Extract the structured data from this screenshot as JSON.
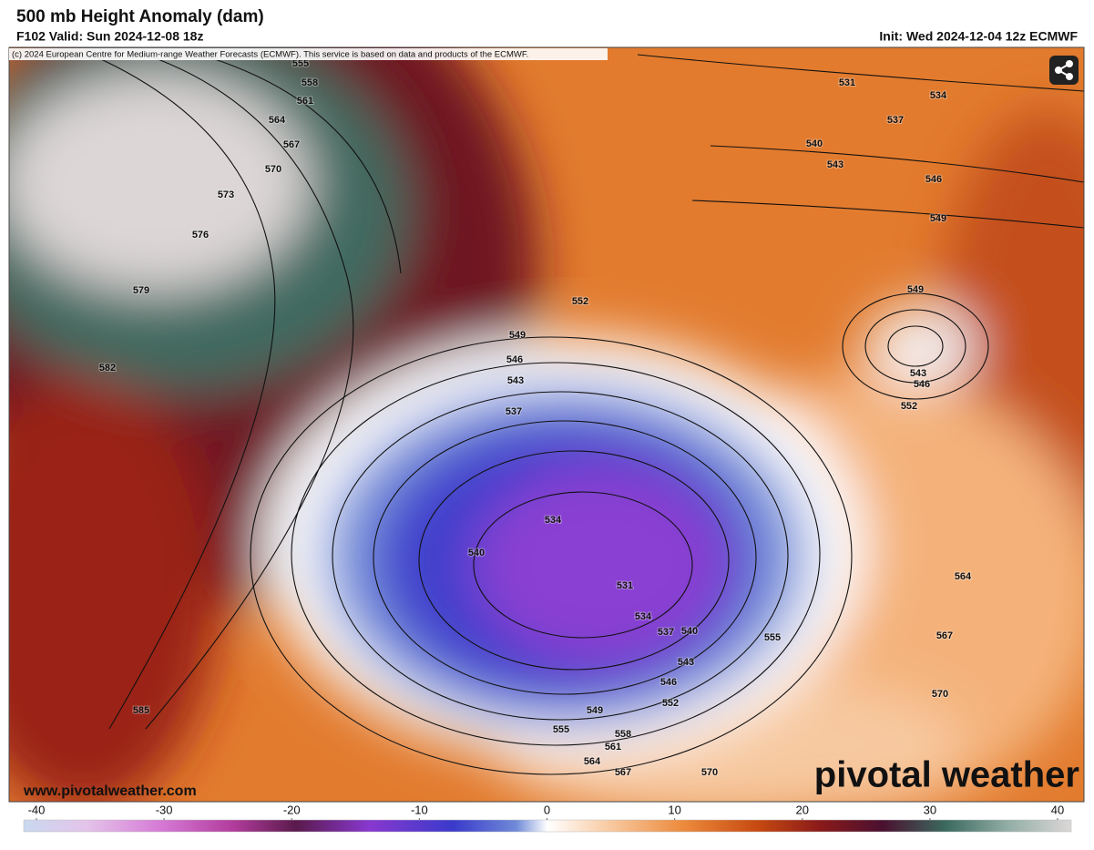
{
  "header": {
    "title": "500 mb Height Anomaly (dam)",
    "valid": "F102 Valid: Sun 2024-12-08 18z",
    "init": "Init: Wed 2024-12-04 12z ECMWF"
  },
  "map": {
    "copyright": "(c) 2024 European Centre for Medium-range Weather Forecasts (ECMWF). This service is based on data and products of the ECMWF.",
    "contour_labels": [
      555,
      558,
      561,
      564,
      567,
      570,
      573,
      576,
      579,
      582,
      585,
      531,
      534,
      537,
      540,
      543,
      546,
      549,
      552,
      549,
      546,
      543,
      537,
      549,
      543,
      546,
      552,
      534,
      540,
      531,
      534,
      537,
      540,
      543,
      546,
      552,
      549,
      555,
      558,
      561,
      564,
      567,
      570,
      555,
      564,
      567,
      570
    ],
    "website": "www.pivotalweather.com",
    "logo": "pivotal weather"
  },
  "colorbar": {
    "range": [
      -40,
      40
    ],
    "ticks": [
      -40,
      -30,
      -20,
      -10,
      0,
      10,
      20,
      30,
      40
    ]
  }
}
